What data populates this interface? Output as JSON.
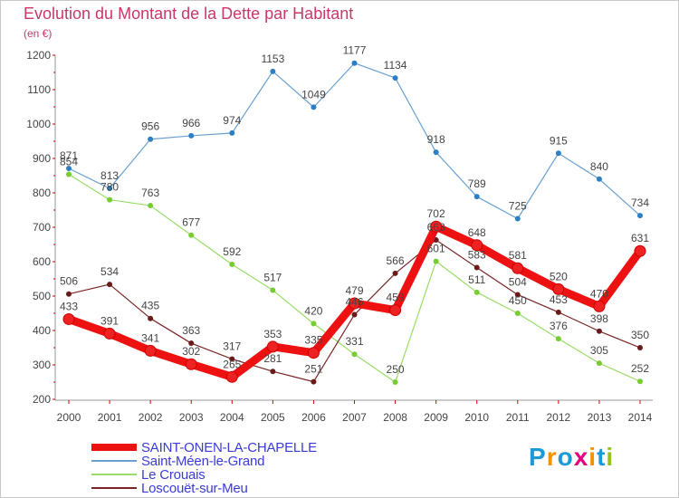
{
  "title": "Evolution du Montant de la Dette par Habitant",
  "unit": "(en €)",
  "logo": {
    "text": "Proxiti",
    "colors": [
      "#1a9ad6",
      "#f39200",
      "#1a9ad6",
      "#e6007e",
      "#f39200",
      "#1a9ad6",
      "#95c11f"
    ]
  },
  "chart_data": {
    "type": "line",
    "title": "Evolution du Montant de la Dette par Habitant",
    "ylabel": "(en €)",
    "xlabel": "",
    "ylim": [
      200,
      1200
    ],
    "yticks": [
      200,
      300,
      400,
      500,
      600,
      700,
      800,
      900,
      1000,
      1100,
      1200
    ],
    "grid": false,
    "legend_position": "bottom-left",
    "x": [
      "2000",
      "2001",
      "2002",
      "2003",
      "2004",
      "2005",
      "2006",
      "2007",
      "2008",
      "2009",
      "2010",
      "2011",
      "2012",
      "2013",
      "2014"
    ],
    "series": [
      {
        "name": "SAINT-ONEN-LA-CHAPELLE",
        "color": "#ee1111",
        "marker": "#ee2222",
        "width": 9,
        "dot": 6,
        "values": [
          433,
          391,
          341,
          302,
          265,
          353,
          335,
          479,
          459,
          702,
          648,
          581,
          520,
          470,
          631
        ]
      },
      {
        "name": "Saint-Méen-le-Grand",
        "color": "#6aa0d0",
        "marker": "#2a7fc5",
        "width": 1.2,
        "dot": 3,
        "values": [
          871,
          813,
          956,
          966,
          974,
          1153,
          1049,
          1177,
          1134,
          918,
          789,
          725,
          915,
          840,
          734
        ]
      },
      {
        "name": "Le Crouais",
        "color": "#99dd66",
        "marker": "#77cc33",
        "width": 1.2,
        "dot": 3,
        "values": [
          854,
          780,
          763,
          677,
          592,
          517,
          420,
          331,
          250,
          601,
          511,
          450,
          376,
          305,
          252
        ]
      },
      {
        "name": "Loscouët-sur-Meu",
        "color": "#7a2424",
        "marker": "#6b1a1a",
        "width": 1.2,
        "dot": 3,
        "values": [
          506,
          534,
          435,
          363,
          317,
          281,
          251,
          446,
          566,
          663,
          583,
          504,
          453,
          398,
          350
        ]
      }
    ]
  },
  "legend": [
    {
      "label": "SAINT-ONEN-LA-CHAPELLE",
      "color": "#ee1111",
      "thickness": 8
    },
    {
      "label": "Saint-Méen-le-Grand",
      "color": "#6aa0d0",
      "thickness": 2
    },
    {
      "label": "Le Crouais",
      "color": "#99dd66",
      "thickness": 2
    },
    {
      "label": "Loscouët-sur-Meu",
      "color": "#7a2424",
      "thickness": 2
    }
  ]
}
